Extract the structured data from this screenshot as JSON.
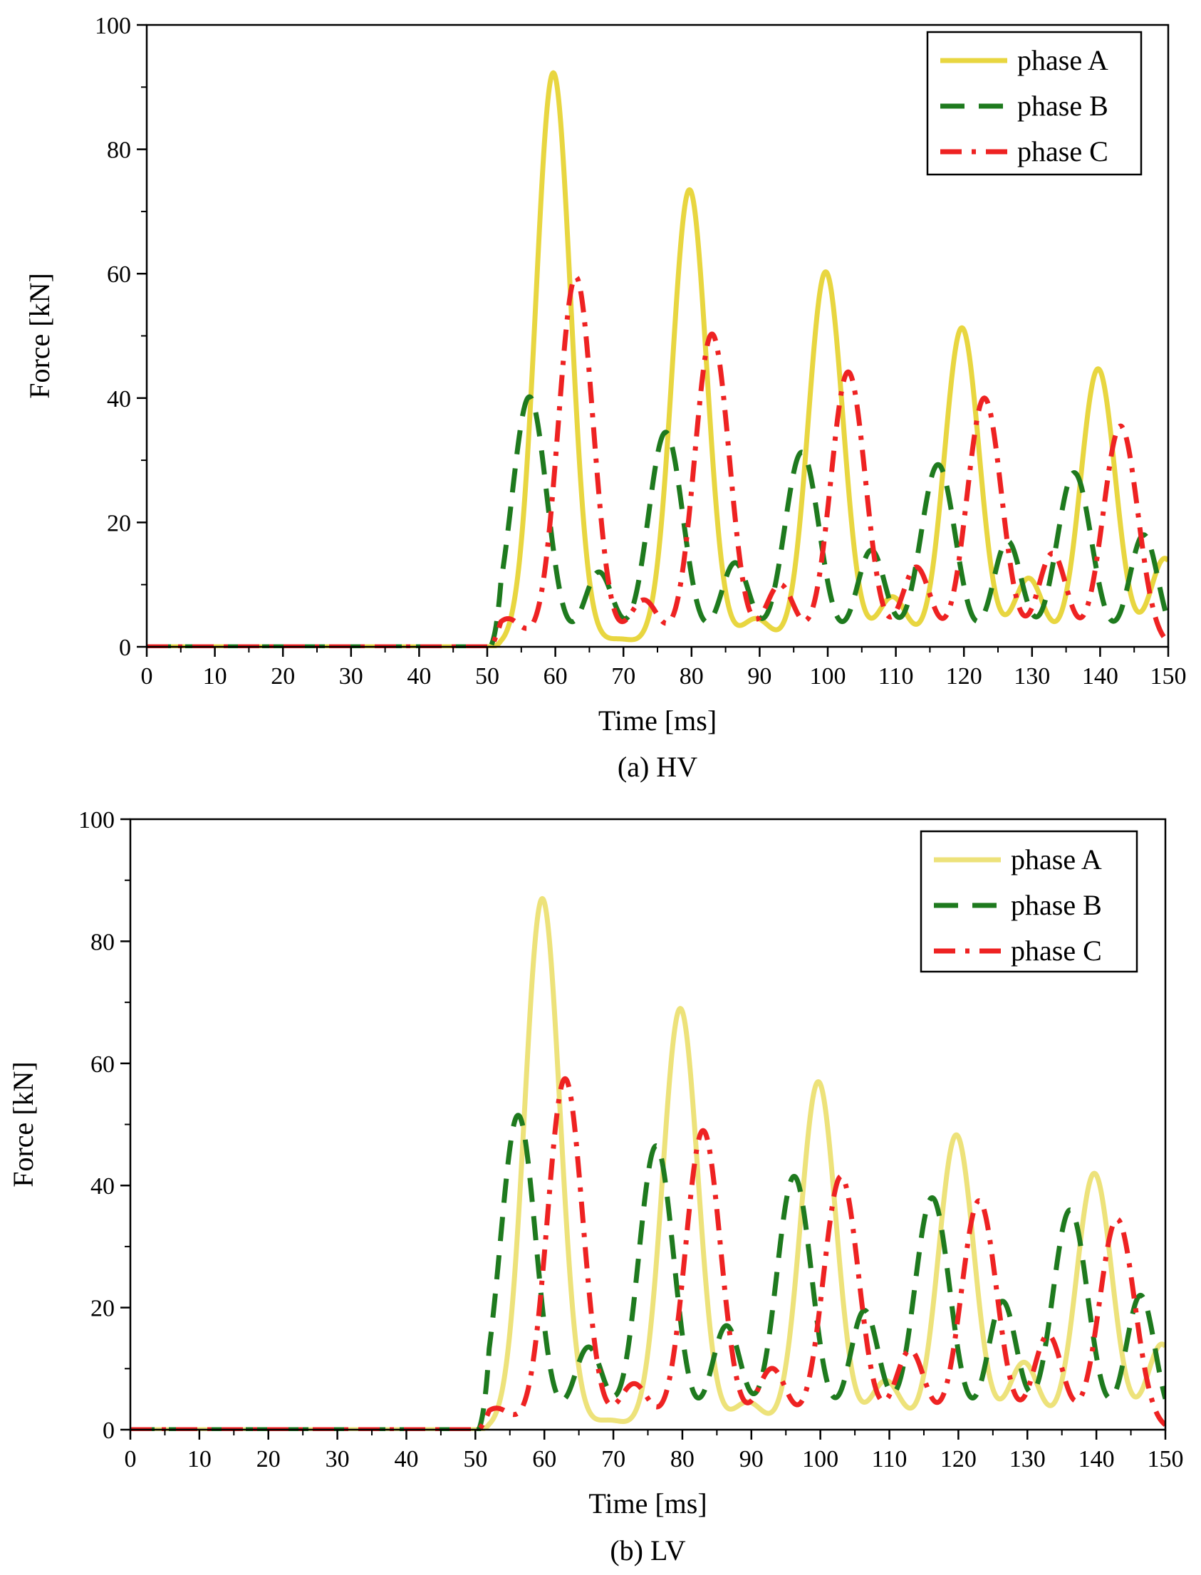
{
  "figure": {
    "subplots": [
      "a",
      "b"
    ]
  },
  "chart_data": [
    {
      "type": "line",
      "id": "a",
      "caption": "(a) HV",
      "xlabel": "Time [ms]",
      "ylabel": "Force [kN]",
      "xlim": [
        0,
        150
      ],
      "ylim": [
        0,
        100
      ],
      "xticks": [
        0,
        10,
        20,
        30,
        40,
        50,
        60,
        70,
        80,
        90,
        100,
        110,
        120,
        130,
        140,
        150
      ],
      "yticks": [
        0,
        20,
        40,
        60,
        80,
        100
      ],
      "grid": false,
      "legend_position": "top-right",
      "fault_time_ms": 50.5,
      "series": [
        {
          "name": "phase A",
          "color": "#e8d640",
          "dash": "solid",
          "peaks": [
            [
              59.7,
              92.3
            ],
            [
              69.5,
              1.2
            ],
            [
              79.7,
              73.5
            ],
            [
              89.5,
              4.5
            ],
            [
              99.7,
              60.3
            ],
            [
              109.5,
              8.0
            ],
            [
              119.7,
              51.3
            ],
            [
              129.5,
              11.0
            ],
            [
              139.7,
              44.7
            ],
            [
              149.5,
              14.2
            ]
          ]
        },
        {
          "name": "phase B",
          "color": "#1e7a1e",
          "dash": "dashed",
          "peaks": [
            [
              56.2,
              40.2
            ],
            [
              66.4,
              12.0
            ],
            [
              76.2,
              34.5
            ],
            [
              86.4,
              13.5
            ],
            [
              96.2,
              31.3
            ],
            [
              106.4,
              15.5
            ],
            [
              116.2,
              29.3
            ],
            [
              126.4,
              17.0
            ],
            [
              136.2,
              28.0
            ],
            [
              146.4,
              18.0
            ]
          ]
        },
        {
          "name": "phase C",
          "color": "#ee2222",
          "dash": "dash-dot",
          "peaks": [
            [
              53.0,
              4.5
            ],
            [
              63.0,
              59.5
            ],
            [
              73.0,
              7.5
            ],
            [
              83.0,
              50.3
            ],
            [
              93.0,
              10.0
            ],
            [
              103.0,
              44.2
            ],
            [
              113.0,
              12.8
            ],
            [
              123.0,
              40.0
            ],
            [
              133.0,
              15.0
            ],
            [
              143.0,
              35.5
            ]
          ]
        }
      ]
    },
    {
      "type": "line",
      "id": "b",
      "caption": "(b) LV",
      "xlabel": "Time [ms]",
      "ylabel": "Force [kN]",
      "xlim": [
        0,
        150
      ],
      "ylim": [
        0,
        100
      ],
      "xticks": [
        0,
        10,
        20,
        30,
        40,
        50,
        60,
        70,
        80,
        90,
        100,
        110,
        120,
        130,
        140,
        150
      ],
      "yticks": [
        0,
        20,
        40,
        60,
        80,
        100
      ],
      "grid": false,
      "legend_position": "top-right",
      "fault_time_ms": 50.5,
      "series": [
        {
          "name": "phase A",
          "color": "#ede27a",
          "dash": "solid",
          "peaks": [
            [
              59.7,
              87.0
            ],
            [
              69.5,
              1.5
            ],
            [
              79.7,
              69.0
            ],
            [
              89.5,
              4.5
            ],
            [
              99.7,
              57.0
            ],
            [
              109.5,
              8.0
            ],
            [
              119.7,
              48.3
            ],
            [
              129.5,
              11.0
            ],
            [
              139.7,
              42.0
            ],
            [
              149.5,
              14.0
            ]
          ]
        },
        {
          "name": "phase B",
          "color": "#1e7a1e",
          "dash": "dashed",
          "peaks": [
            [
              56.2,
              51.5
            ],
            [
              66.4,
              13.5
            ],
            [
              76.2,
              46.5
            ],
            [
              86.4,
              17.0
            ],
            [
              96.2,
              41.5
            ],
            [
              106.4,
              19.5
            ],
            [
              116.2,
              38.0
            ],
            [
              126.4,
              21.0
            ],
            [
              136.2,
              36.0
            ],
            [
              146.4,
              22.0
            ]
          ]
        },
        {
          "name": "phase C",
          "color": "#ee2222",
          "dash": "dash-dot",
          "peaks": [
            [
              53.0,
              3.5
            ],
            [
              63.0,
              57.5
            ],
            [
              73.0,
              7.5
            ],
            [
              83.0,
              49.0
            ],
            [
              93.0,
              10.0
            ],
            [
              103.0,
              41.5
            ],
            [
              113.0,
              13.0
            ],
            [
              123.0,
              37.5
            ],
            [
              133.0,
              15.5
            ],
            [
              143.0,
              34.5
            ]
          ]
        }
      ]
    }
  ]
}
